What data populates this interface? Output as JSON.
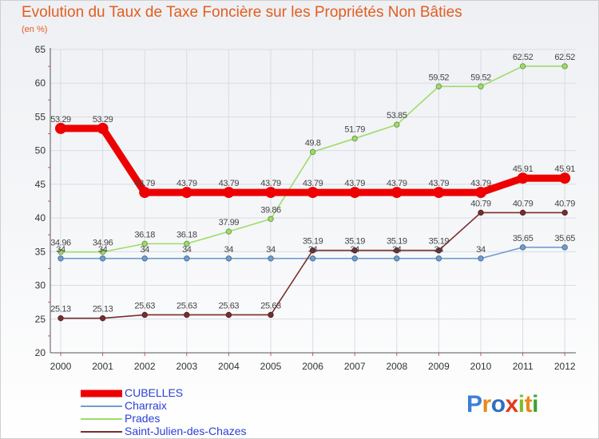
{
  "title": "Evolution du Taux de Taxe Foncière sur les Propriétés Non Bâties",
  "unit_label": "(en %)",
  "brand": {
    "text": "Proxiti",
    "letters": [
      "P",
      "r",
      "o",
      "x",
      "i",
      "t",
      "i"
    ],
    "colors": [
      "#3b7fd8",
      "#e8891a",
      "#2f6fc2",
      "#e5381e",
      "#7cbf2a",
      "#e8891a",
      "#3aa236"
    ]
  },
  "chart_data": {
    "type": "line",
    "title": "Evolution du Taux de Taxe Foncière sur les Propriétés Non Bâties",
    "xlabel": "",
    "ylabel": "(en %)",
    "ylim": [
      20,
      65
    ],
    "yticks": [
      20,
      25,
      30,
      35,
      40,
      45,
      50,
      55,
      60,
      65
    ],
    "grid": true,
    "x": [
      "2000",
      "2001",
      "2002",
      "2003",
      "2004",
      "2005",
      "2006",
      "2007",
      "2008",
      "2009",
      "2010",
      "2011",
      "2012"
    ],
    "series": [
      {
        "name": "CUBELLES",
        "color": "#ee0000",
        "emphasis": true,
        "values": [
          53.29,
          53.29,
          43.79,
          43.79,
          43.79,
          43.79,
          43.79,
          43.79,
          43.79,
          43.79,
          43.79,
          45.91,
          45.91
        ],
        "labels": [
          "53.29",
          "53.29",
          "43.79",
          "43.79",
          "43.79",
          "43.79",
          "43.79",
          "43.79",
          "43.79",
          "43.79",
          "43.79",
          "45.91",
          "45.91"
        ]
      },
      {
        "name": "Charraix",
        "color": "#6f9fd0",
        "emphasis": false,
        "values": [
          34,
          34,
          34,
          34,
          34,
          34,
          34,
          34,
          34,
          34,
          34,
          35.65,
          35.65
        ],
        "labels": [
          "34",
          "34",
          "34",
          "34",
          "34",
          "34",
          "34",
          "34",
          "34",
          "34",
          "34",
          "35.65",
          "35.65"
        ]
      },
      {
        "name": "Prades",
        "color": "#9edc6a",
        "emphasis": false,
        "values": [
          34.96,
          34.96,
          36.18,
          36.18,
          37.99,
          39.86,
          49.8,
          51.79,
          53.85,
          59.52,
          59.52,
          62.52,
          62.52
        ],
        "labels": [
          "34.96",
          "34.96",
          "36.18",
          "36.18",
          "37.99",
          "39.86",
          "49.8",
          "51.79",
          "53.85",
          "59.52",
          "59.52",
          "62.52",
          "62.52"
        ]
      },
      {
        "name": "Saint-Julien-des-Chazes",
        "color": "#7a2e2e",
        "emphasis": false,
        "values": [
          25.13,
          25.13,
          25.63,
          25.63,
          25.63,
          25.63,
          35.19,
          35.19,
          35.19,
          35.19,
          40.79,
          40.79,
          40.79
        ],
        "labels": [
          "25.13",
          "25.13",
          "25.63",
          "25.63",
          "25.63",
          "25.63",
          "35.19",
          "35.19",
          "35.19",
          "35.19",
          "40.79",
          "40.79",
          "40.79"
        ]
      }
    ]
  }
}
